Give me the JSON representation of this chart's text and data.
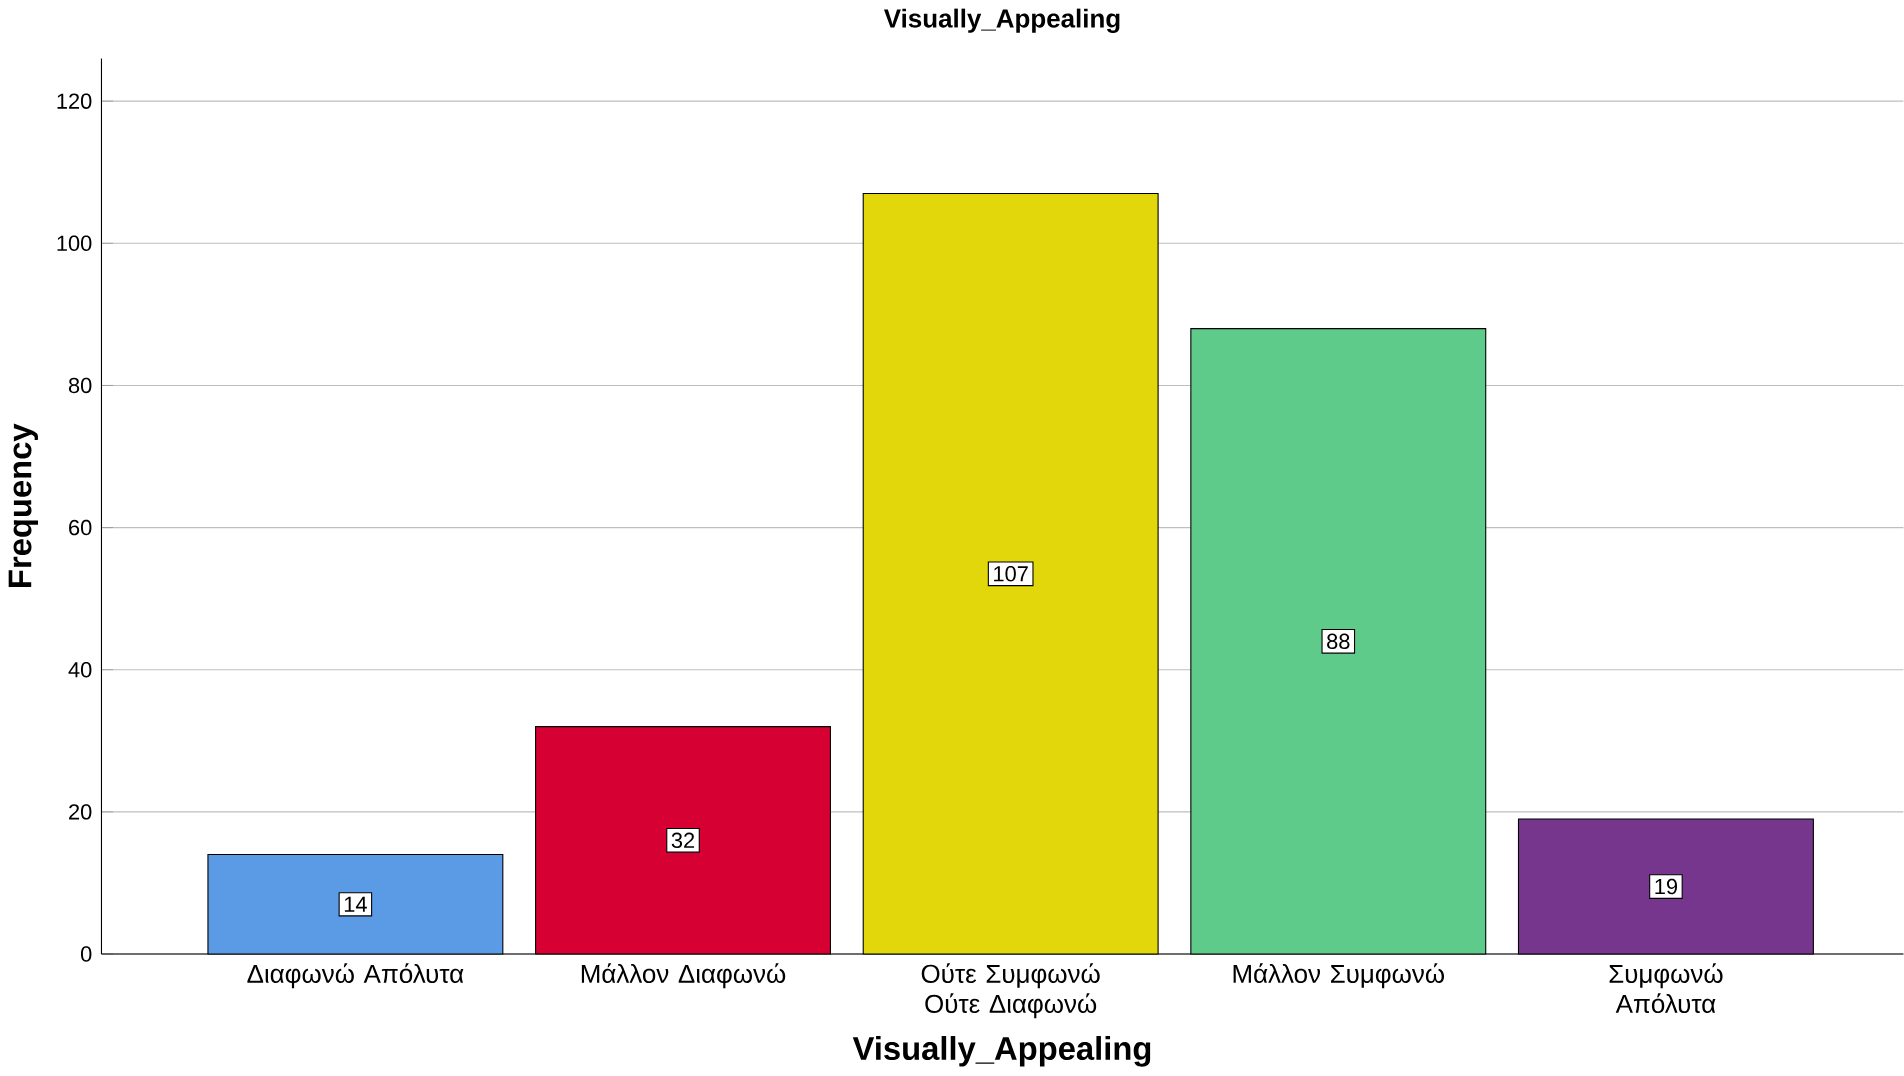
{
  "chart_data": {
    "type": "bar",
    "title": "Visually_Appealing",
    "xlabel": "Visually_Appealing",
    "ylabel": "Frequency",
    "categories": [
      "Διαφωνώ Απόλυτα",
      "Μάλλον Διαφωνώ",
      "Ούτε Συμφωνώ Ούτε Διαφωνώ",
      "Μάλλον Συμφωνώ",
      "Συμφωνώ Απόλυτα"
    ],
    "values": [
      14,
      32,
      107,
      88,
      19
    ],
    "colors": [
      "#5b9be6",
      "#d70032",
      "#e1d70a",
      "#5ecb8a",
      "#77368e"
    ],
    "ylim": [
      0,
      126
    ],
    "yticks": [
      0,
      20,
      40,
      60,
      80,
      100,
      120
    ],
    "grid": "y",
    "data_labels": true
  }
}
